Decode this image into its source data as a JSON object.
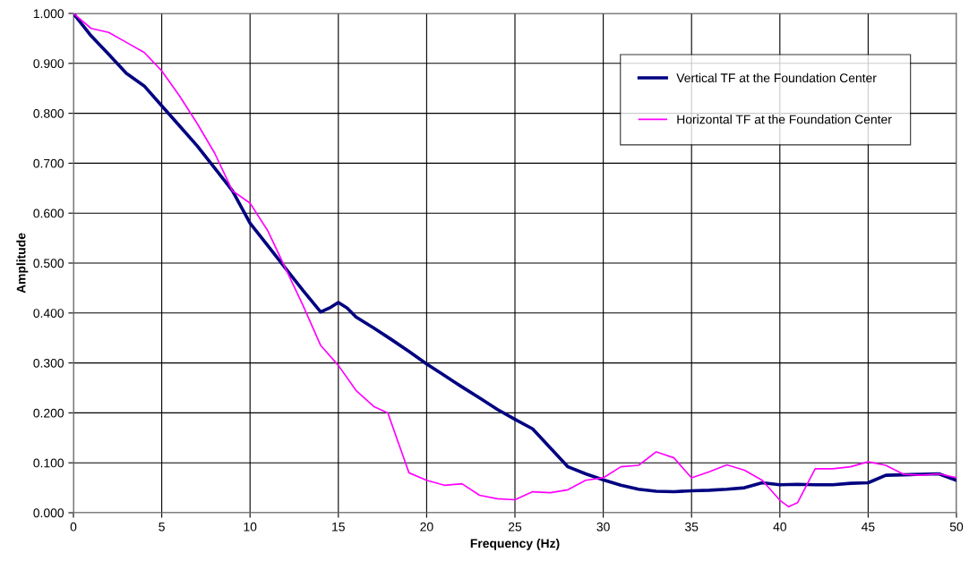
{
  "chart_data": {
    "type": "line",
    "xlabel": "Frequency (Hz)",
    "ylabel": "Amplitude",
    "xlim": [
      0,
      50
    ],
    "xticks": [
      0,
      5,
      10,
      15,
      20,
      25,
      30,
      35,
      40,
      45,
      50
    ],
    "ylim": [
      0,
      1
    ],
    "yticks": [
      {
        "value": 0,
        "label": "0.000"
      },
      {
        "value": 0.1,
        "label": "0.100"
      },
      {
        "value": 0.2,
        "label": "0.200"
      },
      {
        "value": 0.3,
        "label": "0.300"
      },
      {
        "value": 0.4,
        "label": "0.400"
      },
      {
        "value": 0.5,
        "label": "0.500"
      },
      {
        "value": 0.6,
        "label": "0.600"
      },
      {
        "value": 0.7,
        "label": "0.700"
      },
      {
        "value": 0.8,
        "label": "0.800"
      },
      {
        "value": 0.9,
        "label": "0.900"
      },
      {
        "value": 1,
        "label": "1.000"
      }
    ],
    "grid": true,
    "legend": "top right",
    "marker": "none",
    "line_style": "solid",
    "series": [
      {
        "name": "Vertical TF at the Foundation Center",
        "color": "#000080",
        "x": [
          0,
          1,
          2,
          3,
          4,
          5,
          6,
          7,
          8,
          9,
          10,
          11,
          12,
          13,
          14,
          14.5,
          15,
          15.5,
          16,
          17,
          18,
          19,
          20,
          21,
          22,
          23,
          24,
          25,
          26,
          27,
          28,
          29,
          30,
          31,
          32,
          33,
          34,
          35,
          36,
          37,
          38,
          39,
          40,
          41,
          42,
          43,
          44,
          45,
          46,
          47,
          48,
          49,
          50
        ],
        "values": [
          1.0,
          0.955,
          0.918,
          0.88,
          0.855,
          0.815,
          0.775,
          0.735,
          0.69,
          0.645,
          0.58,
          0.535,
          0.49,
          0.445,
          0.402,
          0.41,
          0.421,
          0.41,
          0.392,
          0.37,
          0.347,
          0.323,
          0.298,
          0.275,
          0.252,
          0.23,
          0.207,
          0.187,
          0.168,
          0.13,
          0.092,
          0.078,
          0.066,
          0.055,
          0.047,
          0.043,
          0.042,
          0.044,
          0.045,
          0.047,
          0.05,
          0.06,
          0.056,
          0.057,
          0.056,
          0.056,
          0.059,
          0.06,
          0.075,
          0.076,
          0.077,
          0.078,
          0.065
        ]
      },
      {
        "name": "Horizontal TF at the Foundation Center",
        "color": "#ff00ff",
        "x": [
          0,
          1,
          2,
          3,
          4,
          5,
          6,
          7,
          8,
          9,
          10,
          11,
          12,
          13,
          14,
          15,
          16,
          17,
          17.8,
          18.5,
          19,
          20,
          21,
          22,
          23,
          24,
          25,
          26,
          27,
          28,
          29,
          30,
          31,
          32,
          33,
          34,
          35,
          36,
          37,
          38,
          39,
          40,
          40.5,
          41,
          42,
          43,
          44,
          45,
          46,
          47,
          48,
          49,
          50
        ],
        "values": [
          1.0,
          0.97,
          0.962,
          0.942,
          0.922,
          0.885,
          0.835,
          0.78,
          0.72,
          0.645,
          0.62,
          0.565,
          0.49,
          0.415,
          0.335,
          0.295,
          0.245,
          0.213,
          0.2,
          0.13,
          0.08,
          0.065,
          0.055,
          0.058,
          0.035,
          0.028,
          0.026,
          0.042,
          0.04,
          0.046,
          0.065,
          0.07,
          0.092,
          0.095,
          0.122,
          0.11,
          0.07,
          0.082,
          0.096,
          0.085,
          0.065,
          0.025,
          0.012,
          0.02,
          0.088,
          0.088,
          0.092,
          0.102,
          0.095,
          0.077,
          0.075,
          0.078,
          0.07
        ]
      }
    ]
  }
}
